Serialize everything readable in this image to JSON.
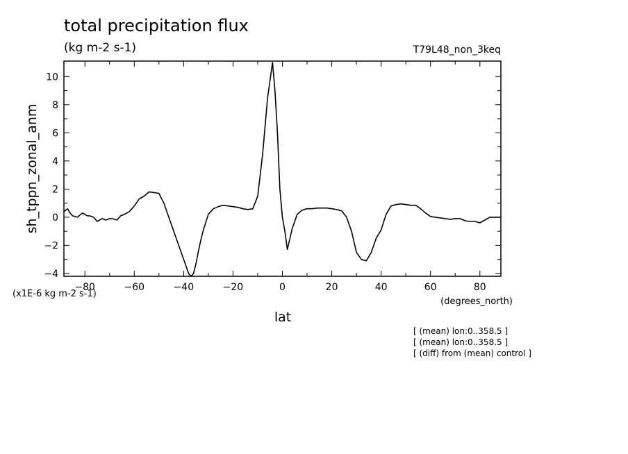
{
  "chart_data": {
    "type": "line",
    "title": "total precipitation flux",
    "units": "(kg m-2 s-1)",
    "run_label": "T79L48_non_3keq",
    "ylabel": "sh_tppn_zonal_anm",
    "xlabel": "lat",
    "xunits": "(degrees_north)",
    "scale_label": "(x1E-6 kg m-2 s-1)",
    "notes": [
      "[ (mean) lon:0..358.5 ]",
      "[ (mean) lon:0..358.5 ]",
      "[ (diff) from (mean) control ]"
    ],
    "xlim": [
      -88.5,
      88.5
    ],
    "ylim": [
      -4.2,
      11.1
    ],
    "xticks": [
      -80,
      -60,
      -40,
      -20,
      0,
      20,
      40,
      60,
      80
    ],
    "yticks": [
      -4,
      -2,
      0,
      2,
      4,
      6,
      8,
      10
    ],
    "grid": false,
    "x": [
      -88.5,
      -87,
      -86,
      -85,
      -83,
      -81,
      -79,
      -78,
      -76.5,
      -75,
      -73,
      -71.5,
      -70,
      -69,
      -67,
      -65.5,
      -64,
      -62,
      -60,
      -58,
      -56,
      -54,
      -52,
      -50,
      -48,
      -46,
      -44,
      -42,
      -40,
      -38,
      -37,
      -36,
      -35,
      -34,
      -33,
      -32,
      -30,
      -28,
      -26,
      -24,
      -22,
      -20,
      -18,
      -16,
      -14,
      -12,
      -10,
      -8,
      -6,
      -4,
      -3,
      -2,
      -1,
      0,
      1,
      2,
      4,
      6,
      8,
      10,
      12,
      14,
      16,
      18,
      20,
      22,
      24,
      26,
      28,
      30,
      32,
      34,
      36,
      38,
      40,
      42,
      44,
      46,
      48,
      50,
      52,
      54,
      56,
      58,
      60,
      62,
      64,
      66,
      68,
      70,
      72,
      74,
      76,
      78,
      80,
      82,
      84,
      86,
      88,
      88.5
    ],
    "y": [
      0.4,
      0.6,
      0.3,
      0.1,
      0.0,
      0.3,
      0.1,
      0.1,
      0.0,
      -0.3,
      -0.1,
      -0.2,
      -0.1,
      -0.1,
      -0.2,
      0.1,
      0.2,
      0.4,
      0.8,
      1.3,
      1.5,
      1.8,
      1.75,
      1.7,
      1.0,
      0.0,
      -1.0,
      -2.0,
      -3.0,
      -4.0,
      -4.2,
      -4.0,
      -3.3,
      -2.4,
      -1.6,
      -0.9,
      0.2,
      0.6,
      0.75,
      0.85,
      0.8,
      0.75,
      0.7,
      0.6,
      0.55,
      0.6,
      1.5,
      4.5,
      8.5,
      11.0,
      9.0,
      6.0,
      2.0,
      0.0,
      -1.0,
      -2.3,
      -0.8,
      0.2,
      0.5,
      0.6,
      0.6,
      0.65,
      0.65,
      0.65,
      0.6,
      0.55,
      0.45,
      0.0,
      -1.0,
      -2.5,
      -3.0,
      -3.1,
      -2.5,
      -1.5,
      -0.9,
      0.2,
      0.8,
      0.9,
      0.95,
      0.9,
      0.85,
      0.85,
      0.6,
      0.3,
      0.05,
      0.0,
      -0.05,
      -0.1,
      -0.15,
      -0.1,
      -0.1,
      -0.25,
      -0.3,
      -0.3,
      -0.4,
      -0.2,
      0.0,
      0.0,
      0.0,
      0.0
    ]
  }
}
